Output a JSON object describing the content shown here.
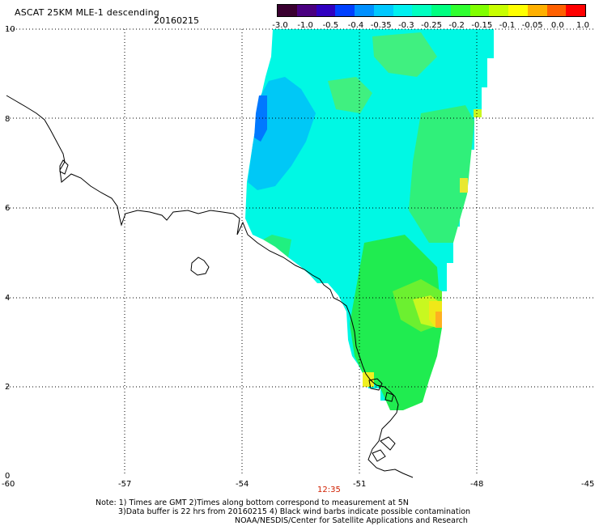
{
  "header": {
    "title": "ASCAT 25KM MLE-1 descending",
    "date": "20160215"
  },
  "colorbar": {
    "colors": [
      "#3a0030",
      "#4a0080",
      "#3000c0",
      "#0040ff",
      "#0090ff",
      "#00c8ff",
      "#00f0f0",
      "#00ffc0",
      "#00ff80",
      "#30ff30",
      "#80ff00",
      "#c8ff00",
      "#ffff00",
      "#ffb000",
      "#ff6000",
      "#ff0000"
    ],
    "labels": [
      "-3.0",
      "-1.0",
      "-0.5",
      "-0.4",
      "-0.35",
      "-0.3",
      "-0.25",
      "-0.2",
      "-0.15",
      "-0.1",
      "-0.05",
      "0.0",
      "1.0"
    ]
  },
  "axes": {
    "lat_labels": [
      "10",
      "8",
      "6",
      "4",
      "2",
      "0"
    ],
    "lon_labels": [
      "-60",
      "-57",
      "-54",
      "-51",
      "-48",
      "-45"
    ]
  },
  "time_label": "12:35",
  "footer": {
    "line1": "Note: 1) Times are GMT 2)Times along bottom correspond to measurement at 5N",
    "line2": "3)Data buffer is 22 hrs from 20160215 4) Black wind barbs indicate possible contamination",
    "line3": "NOAA/NESDIS/Center for Satellite Applications and Research"
  }
}
